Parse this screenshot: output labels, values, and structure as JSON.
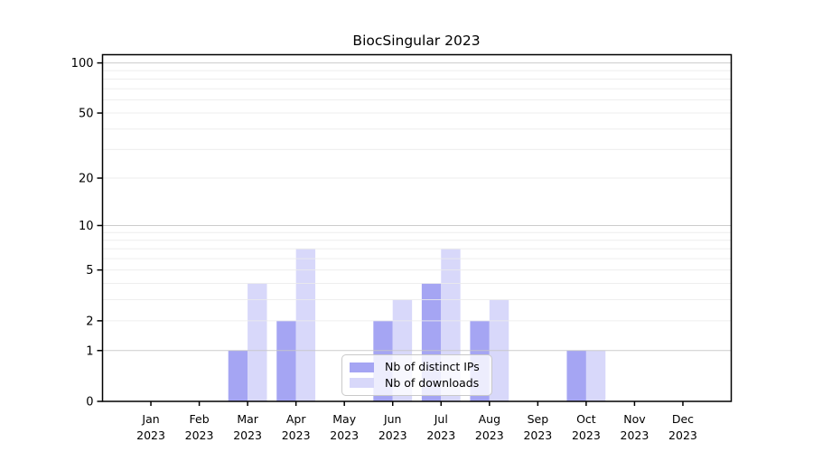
{
  "title": "BiocSingular 2023",
  "legend": {
    "items": [
      {
        "label": "Nb of distinct IPs",
        "color": "#a5a5f3"
      },
      {
        "label": "Nb of downloads",
        "color": "#d8d8fa"
      }
    ],
    "position": "lower center inside plot"
  },
  "axes": {
    "y_tick_labels": [
      "0",
      "1",
      "2",
      "5",
      "10",
      "20",
      "50",
      "100"
    ],
    "x_tick_line2": "2023"
  },
  "chart_data": {
    "type": "bar",
    "title": "BiocSingular 2023",
    "categories": [
      "Jan 2023",
      "Feb 2023",
      "Mar 2023",
      "Apr 2023",
      "May 2023",
      "Jun 2023",
      "Jul 2023",
      "Aug 2023",
      "Sep 2023",
      "Oct 2023",
      "Nov 2023",
      "Dec 2023"
    ],
    "series": [
      {
        "name": "Nb of distinct IPs",
        "color": "#a5a5f3",
        "values": [
          0,
          0,
          1,
          2,
          0,
          2,
          4,
          2,
          0,
          1,
          0,
          0
        ]
      },
      {
        "name": "Nb of downloads",
        "color": "#d8d8fa",
        "values": [
          0,
          0,
          4,
          7,
          0,
          3,
          7,
          3,
          0,
          1,
          0,
          0
        ]
      }
    ],
    "xlabel": "",
    "ylabel": "",
    "yscale": "log1p",
    "ylim": [
      0,
      112
    ],
    "ytick_values": [
      0,
      1,
      2,
      5,
      10,
      20,
      50,
      100
    ],
    "grid": {
      "major_values": [
        1,
        10,
        100
      ],
      "minor_values": [
        2,
        3,
        4,
        5,
        6,
        7,
        8,
        9,
        20,
        30,
        40,
        50,
        60,
        70,
        80,
        90
      ],
      "major_color": "#c6c6c6",
      "minor_color": "#ebebeb"
    },
    "legend_position": "lower center"
  },
  "colors": {
    "background": "#ffffff",
    "axis": "#000000",
    "text": "#000000"
  }
}
